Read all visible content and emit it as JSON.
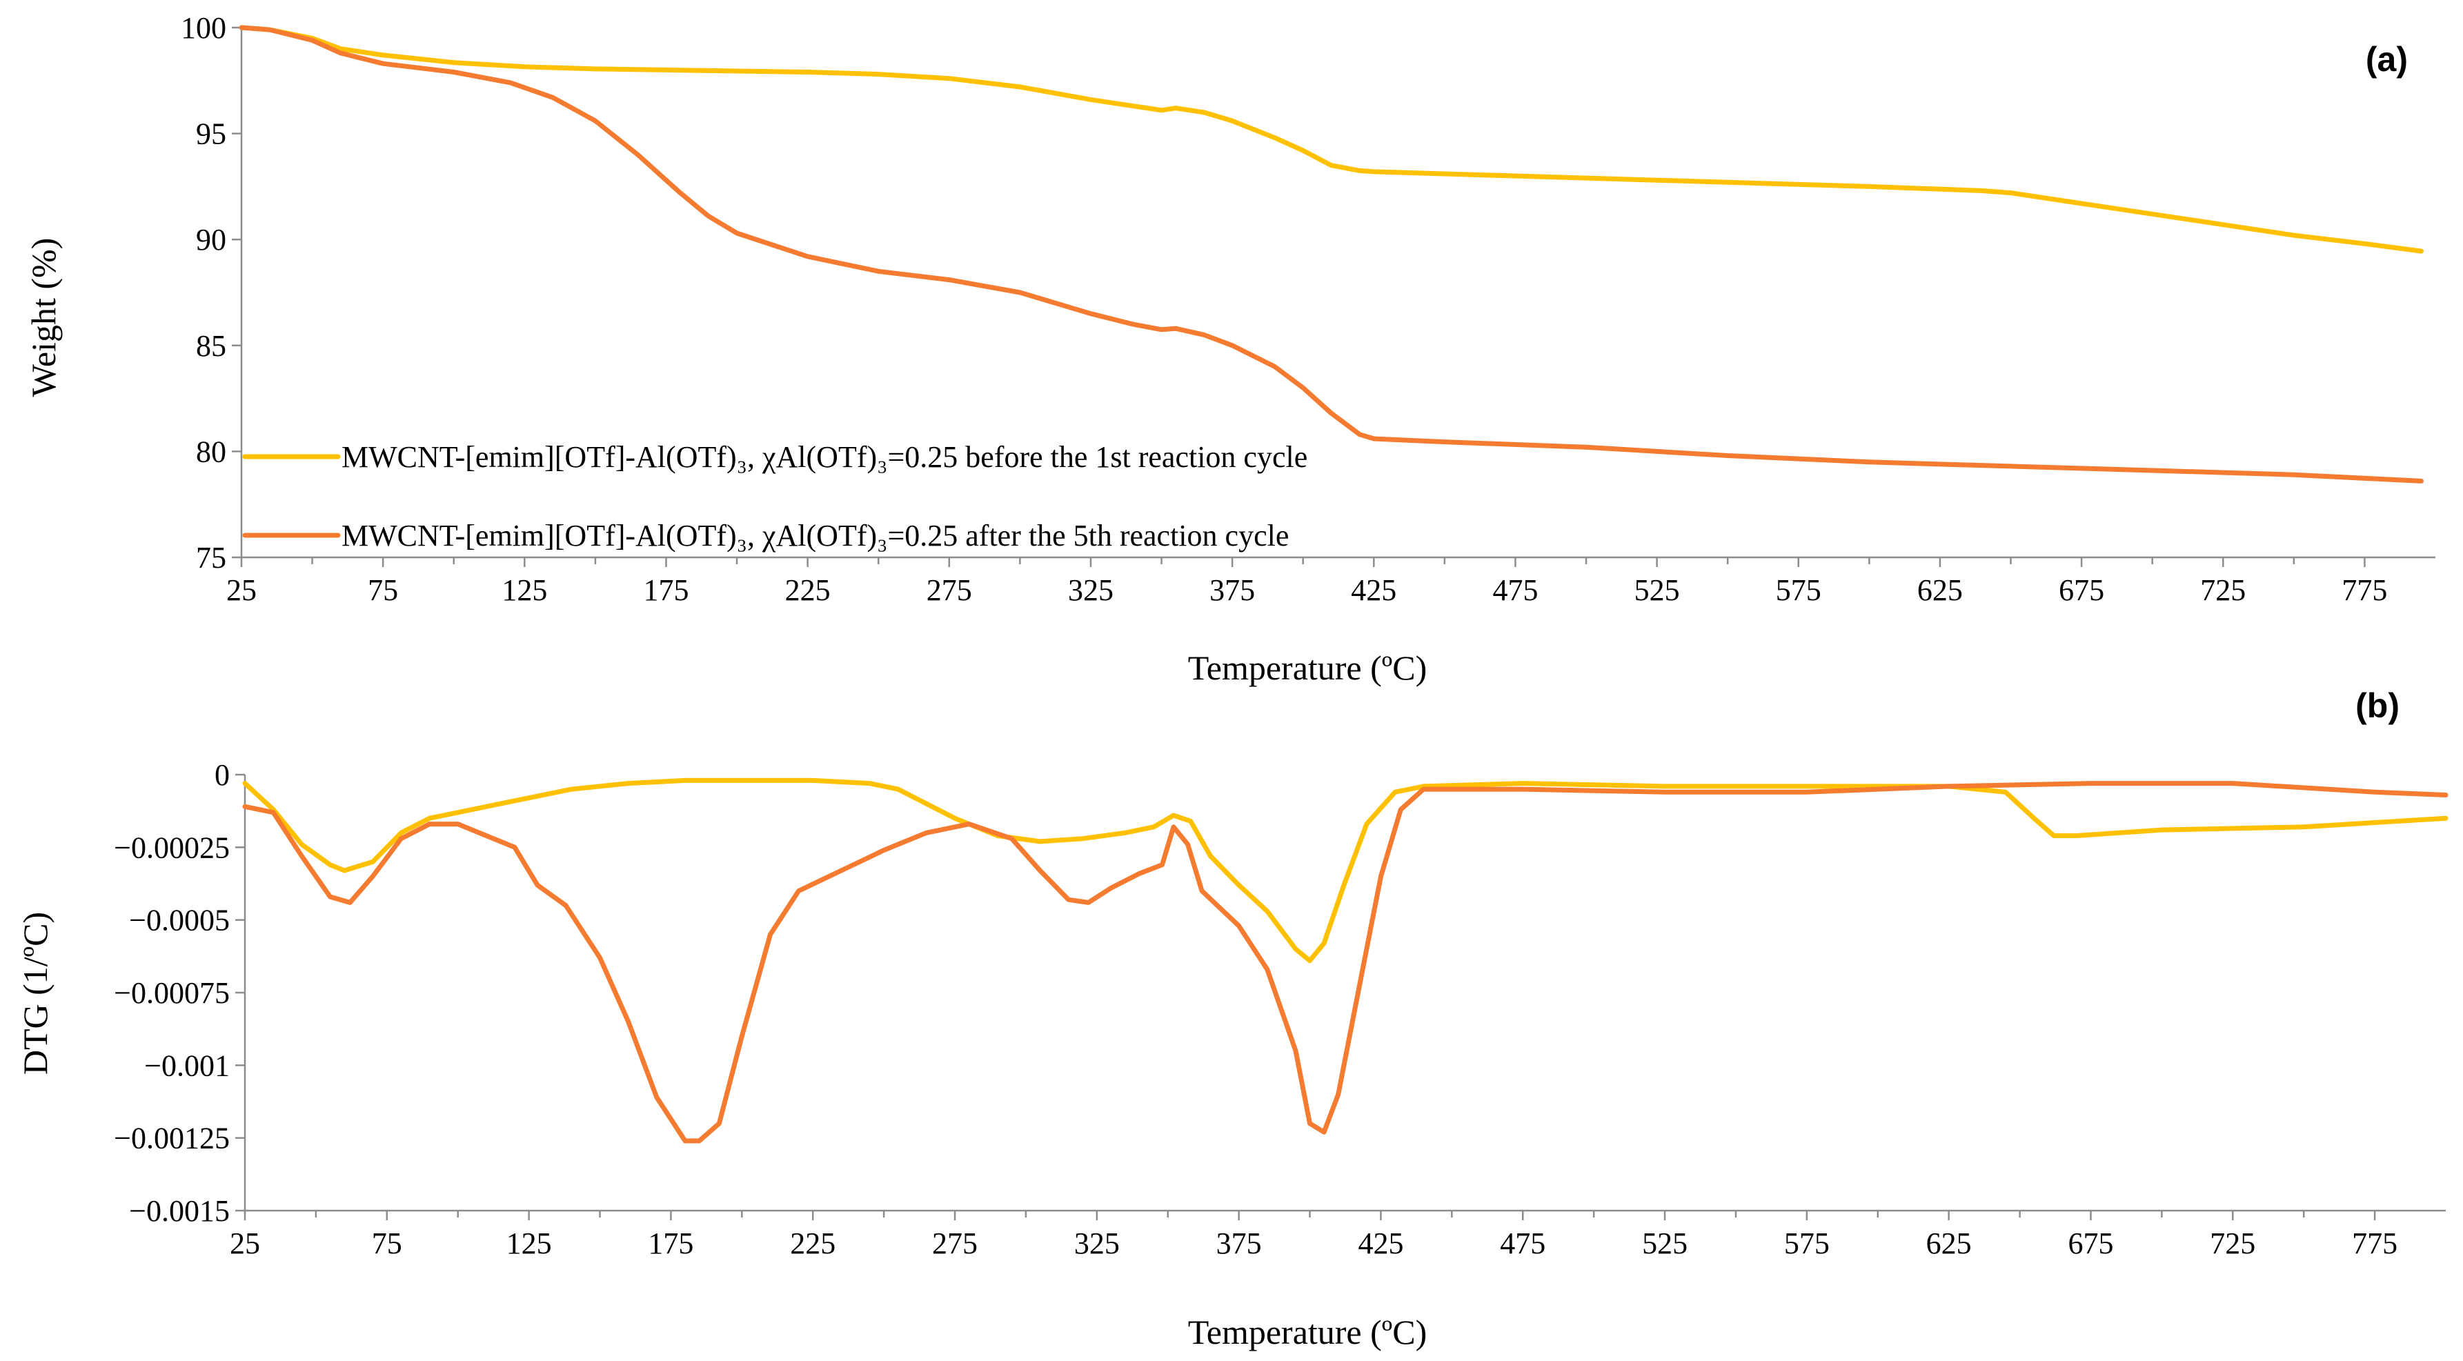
{
  "colors": {
    "before": "#FFC000",
    "after": "#F47B30",
    "axis": "#8c8c8c"
  },
  "chart_data": [
    {
      "type": "line",
      "panel_label": "(a)",
      "title": "",
      "xlabel": "Temperature (ºC)",
      "ylabel": "Weight (%)",
      "xlim": [
        25,
        800
      ],
      "ylim": [
        75,
        100
      ],
      "x_ticks": [
        25,
        75,
        125,
        175,
        225,
        275,
        325,
        375,
        425,
        475,
        525,
        575,
        625,
        675,
        725,
        775
      ],
      "y_ticks": [
        75,
        80,
        85,
        90,
        95,
        100
      ],
      "y_tick_labels": [
        "75",
        "80",
        "85",
        "90",
        "95",
        "100"
      ],
      "legend": "left",
      "series": [
        {
          "name": "MWCNT-[emim][OTf]-Al(OTf)₃, χAl(OTf)₃=0.25 before the 1st reaction cycle",
          "color": "#FFC000",
          "points": [
            [
              25,
              100
            ],
            [
              35,
              99.9
            ],
            [
              50,
              99.5
            ],
            [
              60,
              99.0
            ],
            [
              75,
              98.7
            ],
            [
              100,
              98.35
            ],
            [
              125,
              98.15
            ],
            [
              150,
              98.05
            ],
            [
              175,
              98.0
            ],
            [
              200,
              97.95
            ],
            [
              225,
              97.9
            ],
            [
              250,
              97.8
            ],
            [
              275,
              97.6
            ],
            [
              300,
              97.2
            ],
            [
              325,
              96.6
            ],
            [
              340,
              96.3
            ],
            [
              350,
              96.1
            ],
            [
              355,
              96.2
            ],
            [
              365,
              96.0
            ],
            [
              375,
              95.6
            ],
            [
              390,
              94.8
            ],
            [
              400,
              94.2
            ],
            [
              410,
              93.5
            ],
            [
              420,
              93.25
            ],
            [
              425,
              93.2
            ],
            [
              450,
              93.1
            ],
            [
              500,
              92.9
            ],
            [
              550,
              92.7
            ],
            [
              600,
              92.5
            ],
            [
              640,
              92.3
            ],
            [
              650,
              92.2
            ],
            [
              675,
              91.7
            ],
            [
              700,
              91.2
            ],
            [
              725,
              90.7
            ],
            [
              750,
              90.2
            ],
            [
              775,
              89.8
            ],
            [
              795,
              89.45
            ]
          ]
        },
        {
          "name": "MWCNT-[emim][OTf]-Al(OTf)₃, χAl(OTf)₃=0.25 after the 5th reaction cycle",
          "color": "#F47B30",
          "points": [
            [
              25,
              100
            ],
            [
              35,
              99.9
            ],
            [
              50,
              99.4
            ],
            [
              60,
              98.8
            ],
            [
              75,
              98.3
            ],
            [
              100,
              97.9
            ],
            [
              120,
              97.4
            ],
            [
              135,
              96.7
            ],
            [
              150,
              95.6
            ],
            [
              165,
              94.0
            ],
            [
              180,
              92.2
            ],
            [
              190,
              91.1
            ],
            [
              200,
              90.3
            ],
            [
              225,
              89.2
            ],
            [
              250,
              88.5
            ],
            [
              275,
              88.1
            ],
            [
              300,
              87.5
            ],
            [
              325,
              86.5
            ],
            [
              340,
              86.0
            ],
            [
              350,
              85.75
            ],
            [
              355,
              85.8
            ],
            [
              365,
              85.5
            ],
            [
              375,
              85.0
            ],
            [
              390,
              84.0
            ],
            [
              400,
              83.0
            ],
            [
              410,
              81.8
            ],
            [
              420,
              80.8
            ],
            [
              425,
              80.6
            ],
            [
              450,
              80.45
            ],
            [
              500,
              80.2
            ],
            [
              550,
              79.8
            ],
            [
              600,
              79.5
            ],
            [
              650,
              79.3
            ],
            [
              700,
              79.1
            ],
            [
              750,
              78.9
            ],
            [
              795,
              78.6
            ]
          ]
        }
      ]
    },
    {
      "type": "line",
      "panel_label": "(b)",
      "title": "",
      "xlabel": "Temperature (ºC)",
      "ylabel": "DTG (1/ºC)",
      "xlim": [
        25,
        800
      ],
      "ylim": [
        -0.0015,
        0
      ],
      "x_ticks": [
        25,
        75,
        125,
        175,
        225,
        275,
        325,
        375,
        425,
        475,
        525,
        575,
        625,
        675,
        725,
        775
      ],
      "y_ticks": [
        0,
        -0.00025,
        -0.0005,
        -0.00075,
        -0.001,
        -0.00125,
        -0.0015
      ],
      "y_tick_labels": [
        "0",
        "−0.00025",
        "−0.0005",
        "−0.00075",
        "−0.001",
        "−0.00125",
        "−0.0015"
      ],
      "legend": "none",
      "series": [
        {
          "name": "before the 1st reaction cycle",
          "color": "#FFC000",
          "points": [
            [
              25,
              -3e-05
            ],
            [
              35,
              -0.00012
            ],
            [
              45,
              -0.00024
            ],
            [
              55,
              -0.00031
            ],
            [
              60,
              -0.00033
            ],
            [
              70,
              -0.0003
            ],
            [
              80,
              -0.0002
            ],
            [
              90,
              -0.00015
            ],
            [
              100,
              -0.00013
            ],
            [
              115,
              -0.0001
            ],
            [
              125,
              -8e-05
            ],
            [
              140,
              -5e-05
            ],
            [
              160,
              -3e-05
            ],
            [
              180,
              -2e-05
            ],
            [
              200,
              -2e-05
            ],
            [
              225,
              -2e-05
            ],
            [
              245,
              -3e-05
            ],
            [
              255,
              -5e-05
            ],
            [
              265,
              -0.0001
            ],
            [
              275,
              -0.00015
            ],
            [
              290,
              -0.00021
            ],
            [
              305,
              -0.00023
            ],
            [
              320,
              -0.00022
            ],
            [
              335,
              -0.0002
            ],
            [
              345,
              -0.00018
            ],
            [
              352,
              -0.00014
            ],
            [
              358,
              -0.00016
            ],
            [
              365,
              -0.00028
            ],
            [
              375,
              -0.00038
            ],
            [
              385,
              -0.00047
            ],
            [
              395,
              -0.0006
            ],
            [
              400,
              -0.00064
            ],
            [
              405,
              -0.00058
            ],
            [
              412,
              -0.00038
            ],
            [
              420,
              -0.00017
            ],
            [
              430,
              -6e-05
            ],
            [
              440,
              -4e-05
            ],
            [
              475,
              -3e-05
            ],
            [
              525,
              -4e-05
            ],
            [
              575,
              -4e-05
            ],
            [
              625,
              -4e-05
            ],
            [
              645,
              -6e-05
            ],
            [
              655,
              -0.00015
            ],
            [
              662,
              -0.00021
            ],
            [
              670,
              -0.00021
            ],
            [
              700,
              -0.00019
            ],
            [
              750,
              -0.00018
            ],
            [
              800,
              -0.00015
            ]
          ]
        },
        {
          "name": "after the 5th reaction cycle",
          "color": "#F47B30",
          "points": [
            [
              25,
              -0.00011
            ],
            [
              35,
              -0.00013
            ],
            [
              45,
              -0.00028
            ],
            [
              55,
              -0.00042
            ],
            [
              62,
              -0.00044
            ],
            [
              70,
              -0.00035
            ],
            [
              80,
              -0.00022
            ],
            [
              90,
              -0.00017
            ],
            [
              100,
              -0.00017
            ],
            [
              110,
              -0.00021
            ],
            [
              120,
              -0.00025
            ],
            [
              128,
              -0.00038
            ],
            [
              138,
              -0.00045
            ],
            [
              150,
              -0.00063
            ],
            [
              160,
              -0.00085
            ],
            [
              170,
              -0.00111
            ],
            [
              180,
              -0.00126
            ],
            [
              185,
              -0.00126
            ],
            [
              192,
              -0.0012
            ],
            [
              200,
              -0.0009
            ],
            [
              210,
              -0.00055
            ],
            [
              220,
              -0.0004
            ],
            [
              235,
              -0.00033
            ],
            [
              250,
              -0.00026
            ],
            [
              265,
              -0.0002
            ],
            [
              280,
              -0.00017
            ],
            [
              295,
              -0.00022
            ],
            [
              305,
              -0.00033
            ],
            [
              315,
              -0.00043
            ],
            [
              322,
              -0.00044
            ],
            [
              330,
              -0.00039
            ],
            [
              340,
              -0.00034
            ],
            [
              348,
              -0.00031
            ],
            [
              352,
              -0.00018
            ],
            [
              357,
              -0.00024
            ],
            [
              362,
              -0.0004
            ],
            [
              375,
              -0.00052
            ],
            [
              385,
              -0.00067
            ],
            [
              395,
              -0.00095
            ],
            [
              400,
              -0.0012
            ],
            [
              405,
              -0.00123
            ],
            [
              410,
              -0.0011
            ],
            [
              418,
              -0.0007
            ],
            [
              425,
              -0.00035
            ],
            [
              432,
              -0.00012
            ],
            [
              440,
              -5e-05
            ],
            [
              475,
              -5e-05
            ],
            [
              525,
              -6e-05
            ],
            [
              575,
              -6e-05
            ],
            [
              625,
              -4e-05
            ],
            [
              675,
              -3e-05
            ],
            [
              725,
              -3e-05
            ],
            [
              775,
              -6e-05
            ],
            [
              800,
              -7e-05
            ]
          ]
        }
      ]
    }
  ]
}
